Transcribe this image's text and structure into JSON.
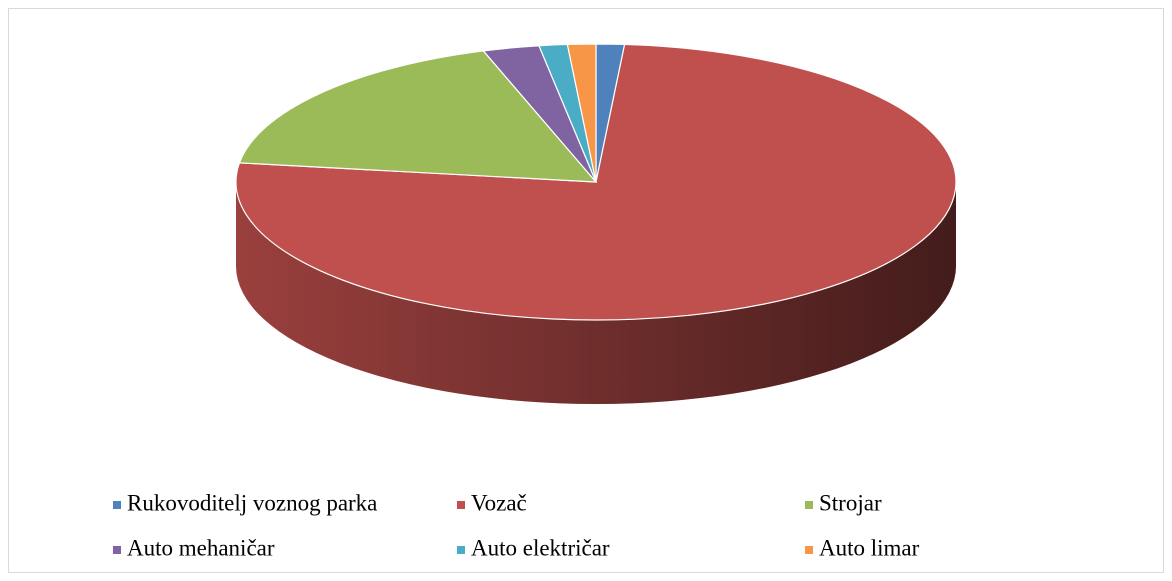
{
  "chart_data": {
    "type": "pie",
    "categories": [
      "Rukovoditelj voznog parka",
      "Vozač",
      "Strojar",
      "Auto mehaničar",
      "Auto električar",
      "Auto limar"
    ],
    "values": [
      1,
      60,
      14,
      2,
      1,
      1
    ],
    "colors": [
      "#4f81bd",
      "#c0504d",
      "#9bbb59",
      "#8064a2",
      "#4bacc6",
      "#f79646"
    ],
    "legend": "bottom"
  }
}
